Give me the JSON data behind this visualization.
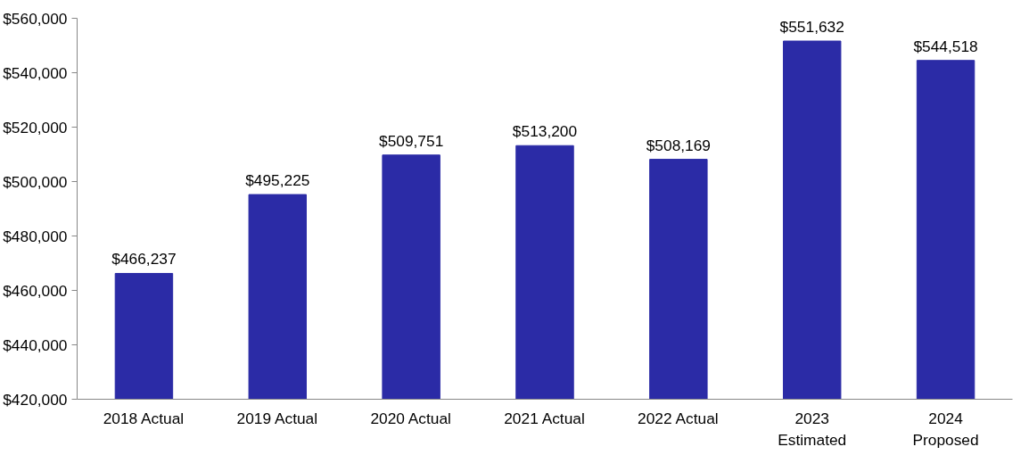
{
  "chart_data": {
    "type": "bar",
    "categories": [
      "2018 Actual",
      "2019 Actual",
      "2020 Actual",
      "2021 Actual",
      "2022 Actual",
      "2023\nEstimated",
      "2024\nProposed"
    ],
    "values": [
      466237,
      495225,
      509751,
      513200,
      508169,
      551632,
      544518
    ],
    "value_labels": [
      "$466,237",
      "$495,225",
      "$509,751",
      "$513,200",
      "$508,169",
      "$551,632",
      "$544,518"
    ],
    "color": "#2b2ba6",
    "ylim": [
      420000,
      560000
    ],
    "yticks": [
      {
        "value": 420000,
        "label": "$420,000"
      },
      {
        "value": 440000,
        "label": "$440,000"
      },
      {
        "value": 460000,
        "label": "$460,000"
      },
      {
        "value": 480000,
        "label": "$480,000"
      },
      {
        "value": 500000,
        "label": "$500,000"
      },
      {
        "value": 520000,
        "label": "$520,000"
      },
      {
        "value": 540000,
        "label": "$540,000"
      },
      {
        "value": 560000,
        "label": "$560,000"
      }
    ],
    "grid": false
  }
}
